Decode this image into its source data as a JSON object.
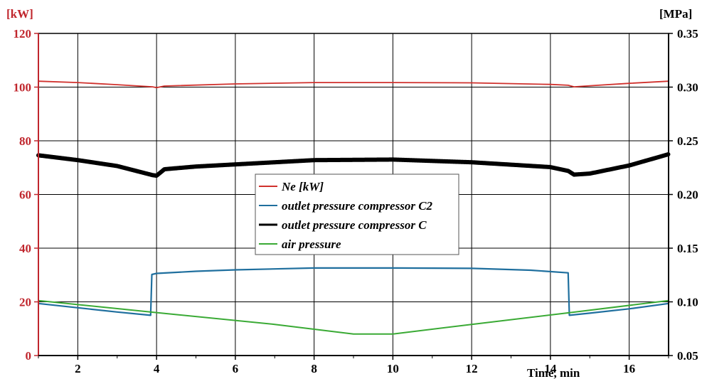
{
  "chart_data": {
    "type": "line",
    "xlabel": "Time, min",
    "xlim": [
      1,
      17
    ],
    "x_ticks": [
      2,
      4,
      6,
      8,
      10,
      12,
      14,
      16
    ],
    "left_axis": {
      "unit": "[kW]",
      "lim": [
        0,
        120
      ],
      "ticks": [
        0,
        20,
        40,
        60,
        80,
        100,
        120
      ],
      "color": "#c0262d"
    },
    "right_axis": {
      "unit": "[MPa]",
      "lim": [
        0.05,
        0.35
      ],
      "ticks": [
        "0.05",
        "0.10",
        "0.15",
        "0.20",
        "0.25",
        "0.30",
        "0.35"
      ],
      "color": "#000000"
    },
    "grid": true,
    "legend_position": "center",
    "series": [
      {
        "name": "Ne [kW]",
        "axis": "left",
        "color": "#d0312d",
        "width": 1.8,
        "points": [
          [
            1,
            102.2
          ],
          [
            2,
            101.7
          ],
          [
            3,
            100.9
          ],
          [
            3.9,
            100.1
          ],
          [
            4,
            99.8
          ],
          [
            4.2,
            100.4
          ],
          [
            6,
            101.2
          ],
          [
            8,
            101.7
          ],
          [
            10,
            101.7
          ],
          [
            12,
            101.6
          ],
          [
            14,
            101.0
          ],
          [
            14.45,
            100.7
          ],
          [
            14.6,
            100.1
          ],
          [
            15,
            100.5
          ],
          [
            16,
            101.4
          ],
          [
            17,
            102.2
          ]
        ]
      },
      {
        "name": "outlet pressure compressor C2",
        "axis": "right",
        "color": "#1f6f9e",
        "width": 2.2,
        "points": [
          [
            1,
            0.0985
          ],
          [
            2,
            0.0945
          ],
          [
            3,
            0.0905
          ],
          [
            3.85,
            0.0875
          ],
          [
            3.88,
            0.1255
          ],
          [
            4,
            0.1265
          ],
          [
            5,
            0.1285
          ],
          [
            6,
            0.1298
          ],
          [
            8,
            0.1315
          ],
          [
            10,
            0.1315
          ],
          [
            12,
            0.1312
          ],
          [
            13.5,
            0.1295
          ],
          [
            14.45,
            0.127
          ],
          [
            14.48,
            0.0875
          ],
          [
            15,
            0.0895
          ],
          [
            16,
            0.0935
          ],
          [
            17,
            0.0985
          ]
        ]
      },
      {
        "name": "outlet pressure compressor C",
        "axis": "right",
        "color": "#000000",
        "width": 6,
        "points": [
          [
            1,
            0.2365
          ],
          [
            2,
            0.232
          ],
          [
            3,
            0.2265
          ],
          [
            3.9,
            0.218
          ],
          [
            4,
            0.2175
          ],
          [
            4.2,
            0.2235
          ],
          [
            5,
            0.226
          ],
          [
            6,
            0.228
          ],
          [
            8,
            0.232
          ],
          [
            10,
            0.2325
          ],
          [
            12,
            0.23
          ],
          [
            14,
            0.2255
          ],
          [
            14.45,
            0.222
          ],
          [
            14.6,
            0.2185
          ],
          [
            15,
            0.2195
          ],
          [
            16,
            0.227
          ],
          [
            17,
            0.2375
          ]
        ]
      },
      {
        "name": "air pressure",
        "axis": "right",
        "color": "#3aaa35",
        "width": 2,
        "points": [
          [
            1,
            0.1012
          ],
          [
            4,
            0.09
          ],
          [
            7,
            0.079
          ],
          [
            9,
            0.07
          ],
          [
            10,
            0.07
          ],
          [
            12,
            0.079
          ],
          [
            14.5,
            0.09
          ],
          [
            17,
            0.1012
          ]
        ]
      }
    ]
  }
}
